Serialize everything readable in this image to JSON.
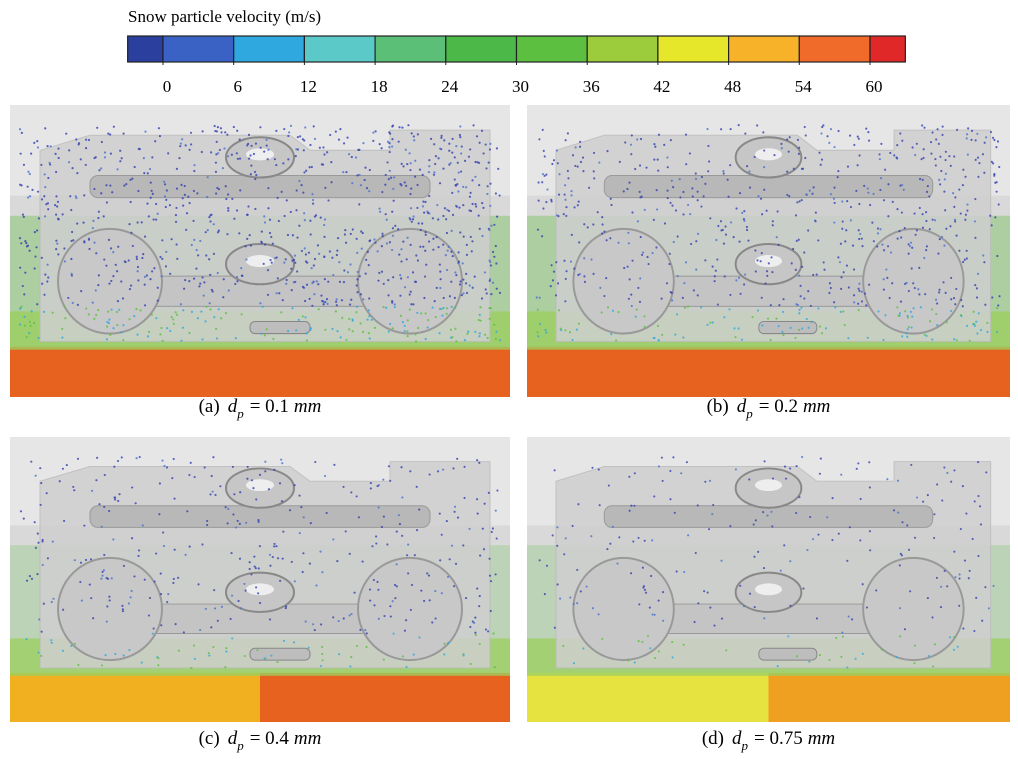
{
  "colorbar": {
    "title": "Snow particle velocity (m/s)",
    "colors": [
      "#2b3f9e",
      "#3a62c4",
      "#2fa8e0",
      "#5cc9c9",
      "#5cbf78",
      "#4cb848",
      "#5cbf40",
      "#9ccc3c",
      "#e6e62a",
      "#f7b22a",
      "#f06a2a",
      "#e02828"
    ],
    "ticks": [
      0,
      6,
      12,
      18,
      24,
      30,
      36,
      42,
      48,
      54,
      60
    ]
  },
  "panels": [
    {
      "label": "(a)",
      "symbol": "d",
      "subscript": "p",
      "value": "= 0.1",
      "unit": "mm"
    },
    {
      "label": "(b)",
      "symbol": "d",
      "subscript": "p",
      "value": "= 0.2",
      "unit": "mm"
    },
    {
      "label": "(c)",
      "symbol": "d",
      "subscript": "p",
      "value": "= 0.4",
      "unit": "mm"
    },
    {
      "label": "(d)",
      "symbol": "d",
      "subscript": "p",
      "value": "= 0.75",
      "unit": "mm"
    }
  ]
}
